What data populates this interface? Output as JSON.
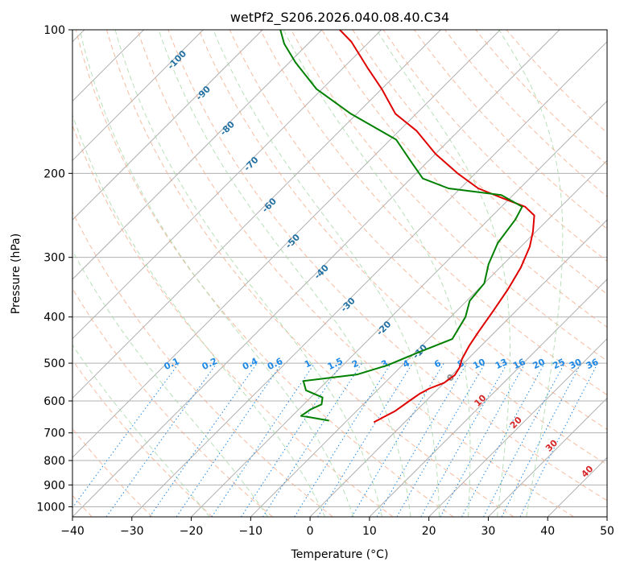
{
  "chart_data": {
    "type": "skew-t log-p diagram",
    "title": "wetPf2_S206.2026.040.08.40.C34",
    "xlabel": "Temperature (°C)",
    "ylabel": "Pressure (hPa)",
    "xlim": [
      -40,
      50
    ],
    "ylim": [
      1050,
      100
    ],
    "x_ticks": [
      -40,
      -30,
      -20,
      -10,
      0,
      10,
      20,
      30,
      40,
      50
    ],
    "y_ticks": [
      100,
      200,
      300,
      400,
      500,
      600,
      700,
      800,
      900,
      1000
    ],
    "grid": true,
    "series": [
      {
        "name": "temperature",
        "color": "#e00000",
        "points": [
          [
            -5.2,
            665
          ],
          [
            -4.5,
            650
          ],
          [
            -3.5,
            630
          ],
          [
            -2.8,
            600
          ],
          [
            -2.3,
            580
          ],
          [
            -1.5,
            565
          ],
          [
            0.0,
            550
          ],
          [
            0.5,
            530
          ],
          [
            0.0,
            510
          ],
          [
            -1.0,
            490
          ],
          [
            -2.0,
            460
          ],
          [
            -2.8,
            430
          ],
          [
            -3.8,
            390
          ],
          [
            -5.0,
            350
          ],
          [
            -6.5,
            315
          ],
          [
            -8.5,
            285
          ],
          [
            -10.5,
            265
          ],
          [
            -13.0,
            245
          ],
          [
            -16.0,
            235
          ],
          [
            -21.5,
            225
          ],
          [
            -27.0,
            215
          ],
          [
            -33.0,
            200
          ],
          [
            -40.0,
            182
          ],
          [
            -47.0,
            163
          ],
          [
            -53.5,
            150
          ],
          [
            -60.0,
            133
          ],
          [
            -66.0,
            120
          ],
          [
            -73.0,
            106
          ],
          [
            -77.0,
            100
          ]
        ]
      },
      {
        "name": "dewpoint",
        "color": "#008000",
        "points": [
          [
            -13.0,
            660
          ],
          [
            -16.5,
            650
          ],
          [
            -18.5,
            645
          ],
          [
            -18.0,
            625
          ],
          [
            -17.0,
            610
          ],
          [
            -18.0,
            590
          ],
          [
            -22.0,
            570
          ],
          [
            -24.0,
            545
          ],
          [
            -16.0,
            528
          ],
          [
            -12.5,
            505
          ],
          [
            -9.5,
            475
          ],
          [
            -6.0,
            445
          ],
          [
            -7.5,
            400
          ],
          [
            -9.5,
            370
          ],
          [
            -10.0,
            340
          ],
          [
            -12.5,
            310
          ],
          [
            -14.5,
            280
          ],
          [
            -15.5,
            250
          ],
          [
            -16.5,
            235
          ],
          [
            -22.0,
            222
          ],
          [
            -32.0,
            215
          ],
          [
            -38.0,
            205
          ],
          [
            -42.5,
            190
          ],
          [
            -49.0,
            170
          ],
          [
            -61.0,
            150
          ],
          [
            -71.0,
            133
          ],
          [
            -79.0,
            117
          ],
          [
            -84.0,
            107
          ],
          [
            -87.0,
            100
          ]
        ]
      }
    ],
    "dry_adiabats": [
      -100,
      -90,
      -80,
      -70,
      -60,
      -50,
      -40,
      -30,
      -20,
      -10,
      0,
      10,
      20,
      30,
      40
    ],
    "moist_adiabats": [
      -20,
      -10,
      0,
      5,
      10,
      15,
      20,
      25,
      30,
      35
    ],
    "mixing_ratio_lines": [
      0.1,
      0.2,
      0.4,
      0.6,
      1,
      1.5,
      2,
      3,
      4,
      6,
      8,
      10,
      13,
      16,
      20,
      25,
      30,
      36
    ],
    "mixing_ratio_labels": [
      "0.1",
      "0.2",
      "0.4",
      "0.6",
      "1",
      "1.5",
      "2",
      "3",
      "4",
      "6",
      "8",
      "10",
      "13",
      "16",
      "20",
      "25",
      "30",
      "36"
    ],
    "dry_adiabat_labels": [
      "-100",
      "-90",
      "-80",
      "-70",
      "-60",
      "-50",
      "-40",
      "-30",
      "-20",
      "-10"
    ],
    "moist_adiabat_labels": [
      "0",
      "10",
      "20",
      "30",
      "40"
    ]
  }
}
